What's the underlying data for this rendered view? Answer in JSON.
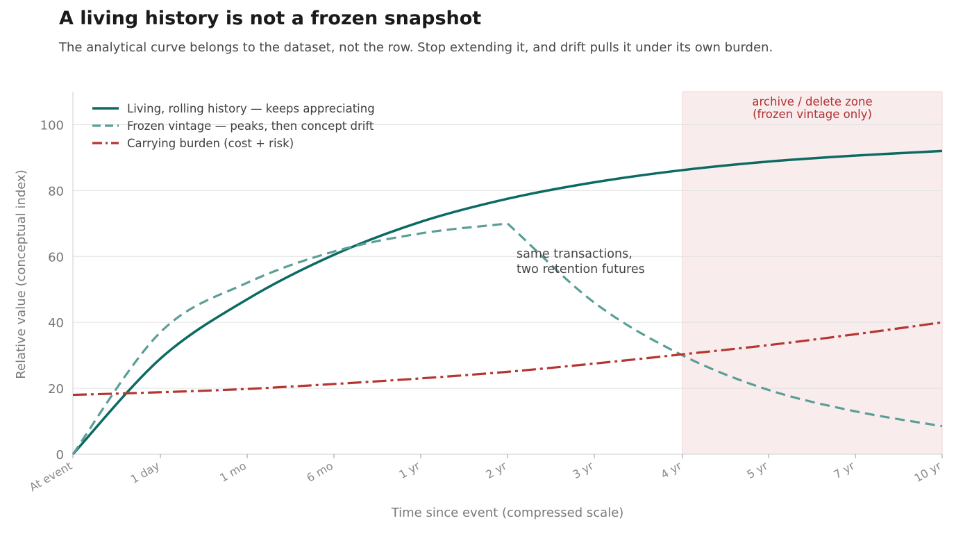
{
  "header": {
    "title": "A living history is not a frozen snapshot",
    "subtitle": "The analytical curve belongs to the dataset, not the row. Stop extending it, and drift pulls it under its own burden."
  },
  "colors": {
    "living": "#0b6b62",
    "frozen": "#5a9e96",
    "burden": "#b53531",
    "zone_fill": "#f9eced",
    "zone_text": "#b03030",
    "grid": "#e2e2e2"
  },
  "chart_data": {
    "type": "line",
    "title": "A living history is not a frozen snapshot",
    "subtitle": "The analytical curve belongs to the dataset, not the row. Stop extending it, and drift pulls it under its own burden.",
    "xlabel": "Time since event (compressed scale)",
    "ylabel": "Relative value (conceptual index)",
    "ylim": [
      0,
      110
    ],
    "yticks": [
      0,
      20,
      40,
      60,
      80,
      100
    ],
    "grid": "horizontal",
    "legend_position": "top-left",
    "categories": [
      "At event",
      "1 day",
      "1 mo",
      "6 mo",
      "1 yr",
      "2 yr",
      "3 yr",
      "4 yr",
      "5 yr",
      "7 yr",
      "10 yr"
    ],
    "series": [
      {
        "name": "Living, rolling history — keeps appreciating",
        "style": "solid",
        "color": "#0b6b62",
        "points": [
          {
            "x": "At event",
            "y": 0
          },
          {
            "x": "1 day",
            "y": 29
          },
          {
            "x": "1 mo",
            "y": 47
          },
          {
            "x": "6 mo",
            "y": 60.5
          },
          {
            "x": "1 yr",
            "y": 70.5
          },
          {
            "x": "2 yr",
            "y": 77.5
          },
          {
            "x": "3 yr",
            "y": 82.5
          },
          {
            "x": "4 yr",
            "y": 86.2
          },
          {
            "x": "5 yr",
            "y": 88.8
          },
          {
            "x": "7 yr",
            "y": 90.6
          },
          {
            "x": "10 yr",
            "y": 92
          }
        ]
      },
      {
        "name": "Frozen vintage — peaks, then concept drift",
        "style": "dashed",
        "color": "#5a9e96",
        "points": [
          {
            "x": "At event",
            "y": 0
          },
          {
            "x": "1 day",
            "y": 37
          },
          {
            "x": "1 mo",
            "y": 52
          },
          {
            "x": "6 mo",
            "y": 61.5
          },
          {
            "x": "1 yr",
            "y": 67
          },
          {
            "x": "2 yr",
            "y": 70
          },
          {
            "x": "3 yr",
            "y": 46
          },
          {
            "x": "4 yr",
            "y": 30
          },
          {
            "x": "5 yr",
            "y": 19.5
          },
          {
            "x": "7 yr",
            "y": 13
          },
          {
            "x": "10 yr",
            "y": 8.5
          }
        ]
      },
      {
        "name": "Carrying burden (cost + risk)",
        "style": "dashdot",
        "color": "#b53531",
        "points": [
          {
            "x": "At event",
            "y": 18
          },
          {
            "x": "1 day",
            "y": 18.8
          },
          {
            "x": "1 mo",
            "y": 19.8
          },
          {
            "x": "6 mo",
            "y": 21.3
          },
          {
            "x": "1 yr",
            "y": 23
          },
          {
            "x": "2 yr",
            "y": 25
          },
          {
            "x": "3 yr",
            "y": 27.5
          },
          {
            "x": "4 yr",
            "y": 30.3
          },
          {
            "x": "5 yr",
            "y": 33.1
          },
          {
            "x": "7 yr",
            "y": 36.4
          },
          {
            "x": "10 yr",
            "y": 40
          }
        ]
      }
    ],
    "shaded_region": {
      "from": "4 yr",
      "to": "10 yr",
      "label_line1": "archive / delete zone",
      "label_line2": "(frozen vintage only)"
    },
    "annotation": {
      "at_x": "2 yr",
      "at_y": 58,
      "line1": "same transactions,",
      "line2": "two retention futures"
    }
  }
}
